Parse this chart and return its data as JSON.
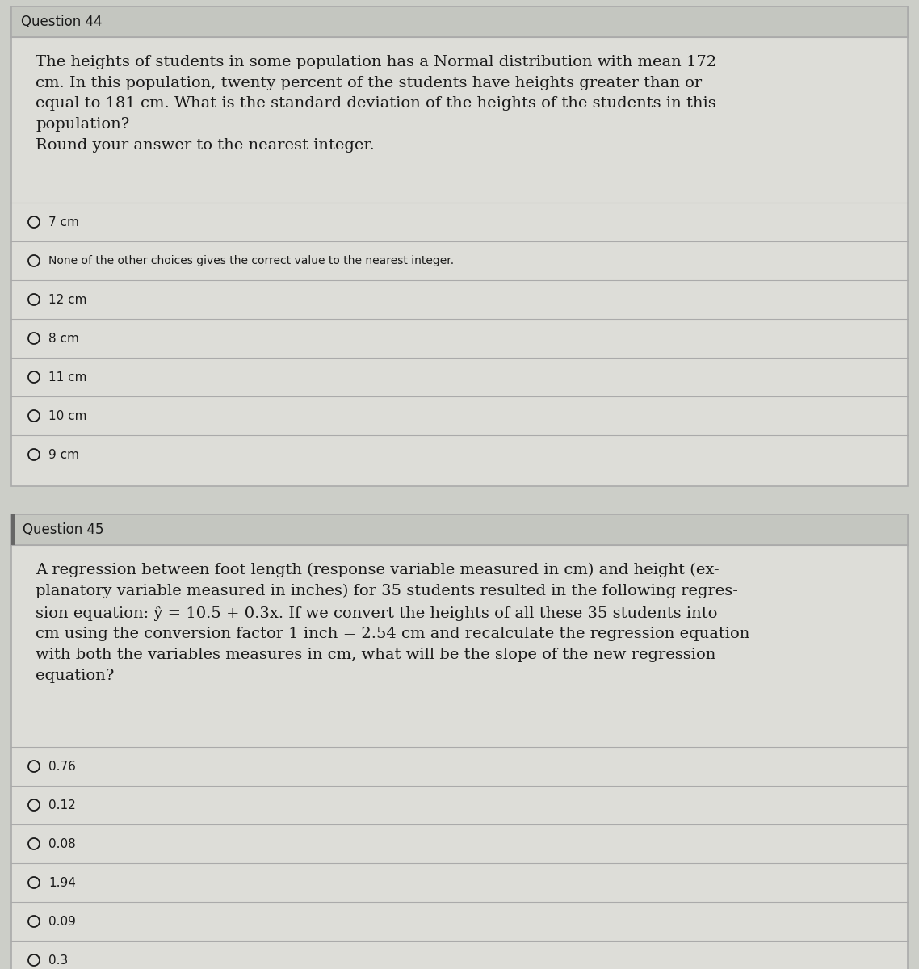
{
  "bg_color": "#cccec8",
  "content_bg": "#ddddd8",
  "header_bg": "#c4c6c0",
  "border_color": "#aaaaaa",
  "text_color": "#1a1a1a",
  "question44_header": "Question 44",
  "question44_body": "The heights of students in some population has a Normal distribution with mean 172\ncm. In this population, twenty percent of the students have heights greater than or\nequal to 181 cm. What is the standard deviation of the heights of the students in this\npopulation?\nRound your answer to the nearest integer.",
  "question44_choices": [
    "7 cm",
    "None of the other choices gives the correct value to the nearest integer.",
    "12 cm",
    "8 cm",
    "11 cm",
    "10 cm",
    "9 cm"
  ],
  "question45_header": "Question 45",
  "question45_body": "A regression between foot length (response variable measured in cm) and height (ex-\nplanatory variable measured in inches) for 35 students resulted in the following regres-\nsion equation: ŷ = 10.5 + 0.3x. If we convert the heights of all these 35 students into\ncm using the conversion factor 1 inch = 2.54 cm and recalculate the regression equation\nwith both the variables measures in cm, what will be the slope of the new regression\nequation?",
  "question45_choices": [
    "0.76",
    "0.12",
    "0.08",
    "1.94",
    "0.09",
    "0.3"
  ],
  "choice_fontsize": 11,
  "body_fontsize": 14,
  "header_fontsize": 12,
  "fig_width": 11.38,
  "fig_height": 12.0,
  "dpi": 100
}
